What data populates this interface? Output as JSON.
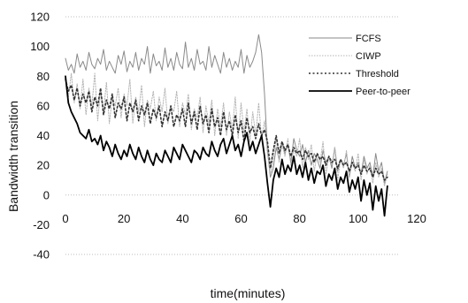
{
  "chart_data": {
    "type": "line",
    "title": "",
    "xlabel": "time(minutes)",
    "ylabel": "Bandwidth transition",
    "xlim": [
      0,
      120
    ],
    "ylim": [
      -40,
      120
    ],
    "xticks": [
      "0",
      "20",
      "40",
      "60",
      "80",
      "100",
      "120"
    ],
    "yticks": [
      "120",
      "100",
      "80",
      "60",
      "40",
      "20",
      "0",
      "-20",
      "-40"
    ],
    "xtick_values": [
      0,
      20,
      40,
      60,
      80,
      100,
      120
    ],
    "ytick_values": [
      120,
      100,
      80,
      60,
      40,
      20,
      0,
      -20,
      -40
    ],
    "grid": true,
    "legend_position": "top-right",
    "series": [
      {
        "name": "FCFS",
        "color": "#8a8a8a",
        "style": "thin-solid",
        "x": [
          0,
          1,
          2,
          3,
          4,
          5,
          6,
          7,
          8,
          9,
          10,
          11,
          12,
          13,
          14,
          15,
          16,
          17,
          18,
          19,
          20,
          21,
          22,
          23,
          24,
          25,
          26,
          27,
          28,
          29,
          30,
          31,
          32,
          33,
          34,
          35,
          36,
          37,
          38,
          39,
          40,
          41,
          42,
          43,
          44,
          45,
          46,
          47,
          48,
          49,
          50,
          51,
          52,
          53,
          54,
          55,
          56,
          57,
          58,
          59,
          60,
          61,
          62,
          63,
          64,
          65,
          66,
          67,
          68,
          69,
          70,
          71,
          72,
          73,
          74,
          75,
          76,
          77,
          78,
          79,
          80,
          81,
          82,
          83,
          84,
          85,
          86,
          87,
          88,
          89,
          90,
          91,
          92,
          93,
          94,
          95,
          96,
          97,
          98,
          99,
          100,
          101,
          102,
          103,
          104,
          105,
          106,
          107,
          108,
          109,
          110
        ],
        "values": [
          92,
          84,
          88,
          82,
          95,
          86,
          90,
          84,
          96,
          88,
          85,
          92,
          88,
          98,
          84,
          90,
          86,
          82,
          94,
          88,
          97,
          83,
          90,
          86,
          96,
          84,
          92,
          88,
          100,
          82,
          95,
          87,
          90,
          84,
          99,
          86,
          92,
          84,
          96,
          88,
          85,
          103,
          86,
          92,
          84,
          98,
          88,
          90,
          84,
          100,
          86,
          94,
          88,
          82,
          96,
          86,
          92,
          84,
          90,
          86,
          98,
          82,
          94,
          86,
          90,
          96,
          108,
          96,
          68,
          30,
          12,
          18,
          32,
          24,
          36,
          28,
          34,
          22,
          38,
          30,
          26,
          34,
          22,
          30,
          20,
          28,
          24,
          18,
          30,
          22,
          26,
          18,
          32,
          16,
          24,
          20,
          28,
          12,
          26,
          18,
          22,
          14,
          26,
          18,
          22,
          12,
          28,
          16,
          22,
          8,
          16
        ]
      },
      {
        "name": "CIWP",
        "color": "#b5b5b5",
        "style": "thin-dotted",
        "x": [
          0,
          1,
          2,
          3,
          4,
          5,
          6,
          7,
          8,
          9,
          10,
          11,
          12,
          13,
          14,
          15,
          16,
          17,
          18,
          19,
          20,
          21,
          22,
          23,
          24,
          25,
          26,
          27,
          28,
          29,
          30,
          31,
          32,
          33,
          34,
          35,
          36,
          37,
          38,
          39,
          40,
          41,
          42,
          43,
          44,
          45,
          46,
          47,
          48,
          49,
          50,
          51,
          52,
          53,
          54,
          55,
          56,
          57,
          58,
          59,
          60,
          61,
          62,
          63,
          64,
          65,
          66,
          67,
          68,
          69,
          70,
          71,
          72,
          73,
          74,
          75,
          76,
          77,
          78,
          79,
          80,
          81,
          82,
          83,
          84,
          85,
          86,
          87,
          88,
          89,
          90,
          91,
          92,
          93,
          94,
          95,
          96,
          97,
          98,
          99,
          100,
          101,
          102,
          103,
          104,
          105,
          106,
          107,
          108,
          109,
          110
        ],
        "values": [
          80,
          66,
          82,
          62,
          75,
          58,
          78,
          54,
          72,
          60,
          82,
          50,
          70,
          56,
          76,
          48,
          66,
          60,
          72,
          52,
          68,
          60,
          78,
          48,
          66,
          56,
          74,
          46,
          64,
          58,
          70,
          50,
          66,
          56,
          72,
          48,
          60,
          56,
          70,
          46,
          62,
          54,
          68,
          44,
          58,
          52,
          66,
          42,
          60,
          48,
          64,
          40,
          58,
          46,
          62,
          40,
          56,
          44,
          66,
          38,
          62,
          42,
          58,
          36,
          56,
          40,
          62,
          38,
          50,
          28,
          14,
          24,
          38,
          22,
          34,
          26,
          38,
          20,
          30,
          26,
          38,
          18,
          32,
          24,
          34,
          16,
          28,
          22,
          36,
          14,
          26,
          20,
          32,
          10,
          24,
          18,
          30,
          12,
          22,
          16,
          28,
          10,
          24,
          14,
          20,
          8,
          22,
          12,
          18,
          6,
          14
        ]
      },
      {
        "name": "Threshold",
        "color": "#333333",
        "style": "dotted",
        "x": [
          0,
          1,
          2,
          3,
          4,
          5,
          6,
          7,
          8,
          9,
          10,
          11,
          12,
          13,
          14,
          15,
          16,
          17,
          18,
          19,
          20,
          21,
          22,
          23,
          24,
          25,
          26,
          27,
          28,
          29,
          30,
          31,
          32,
          33,
          34,
          35,
          36,
          37,
          38,
          39,
          40,
          41,
          42,
          43,
          44,
          45,
          46,
          47,
          48,
          49,
          50,
          51,
          52,
          53,
          54,
          55,
          56,
          57,
          58,
          59,
          60,
          61,
          62,
          63,
          64,
          65,
          66,
          67,
          68,
          69,
          70,
          71,
          72,
          73,
          74,
          75,
          76,
          77,
          78,
          79,
          80,
          81,
          82,
          83,
          84,
          85,
          86,
          87,
          88,
          89,
          90,
          91,
          92,
          93,
          94,
          95,
          96,
          97,
          98,
          99,
          100,
          101,
          102,
          103,
          104,
          105,
          106,
          107,
          108,
          109,
          110
        ],
        "values": [
          78,
          70,
          74,
          64,
          72,
          60,
          68,
          62,
          70,
          56,
          66,
          60,
          72,
          54,
          64,
          58,
          68,
          52,
          62,
          58,
          66,
          50,
          62,
          56,
          64,
          50,
          60,
          54,
          62,
          48,
          58,
          52,
          60,
          46,
          56,
          50,
          60,
          46,
          54,
          50,
          58,
          46,
          62,
          48,
          56,
          44,
          60,
          48,
          54,
          42,
          58,
          46,
          52,
          40,
          56,
          44,
          50,
          40,
          54,
          42,
          50,
          36,
          52,
          42,
          46,
          38,
          48,
          40,
          44,
          36,
          18,
          30,
          40,
          28,
          36,
          30,
          34,
          26,
          32,
          28,
          30,
          24,
          30,
          26,
          28,
          22,
          28,
          24,
          26,
          20,
          26,
          22,
          24,
          18,
          24,
          20,
          22,
          16,
          22,
          18,
          20,
          14,
          20,
          16,
          18,
          12,
          18,
          14,
          16,
          10,
          12
        ]
      },
      {
        "name": "Peer-to-peer",
        "color": "#000000",
        "style": "solid",
        "x": [
          0,
          1,
          2,
          3,
          4,
          5,
          6,
          7,
          8,
          9,
          10,
          11,
          12,
          13,
          14,
          15,
          16,
          17,
          18,
          19,
          20,
          21,
          22,
          23,
          24,
          25,
          26,
          27,
          28,
          29,
          30,
          31,
          32,
          33,
          34,
          35,
          36,
          37,
          38,
          39,
          40,
          41,
          42,
          43,
          44,
          45,
          46,
          47,
          48,
          49,
          50,
          51,
          52,
          53,
          54,
          55,
          56,
          57,
          58,
          59,
          60,
          61,
          62,
          63,
          64,
          65,
          66,
          67,
          68,
          69,
          70,
          71,
          72,
          73,
          74,
          75,
          76,
          77,
          78,
          79,
          80,
          81,
          82,
          83,
          84,
          85,
          86,
          87,
          88,
          89,
          90,
          91,
          92,
          93,
          94,
          95,
          96,
          97,
          98,
          99,
          100,
          101,
          102,
          103,
          104,
          105,
          106,
          107,
          108,
          109,
          110
        ],
        "values": [
          80,
          62,
          56,
          52,
          48,
          42,
          40,
          38,
          44,
          36,
          38,
          34,
          40,
          30,
          36,
          32,
          26,
          34,
          28,
          24,
          30,
          26,
          34,
          28,
          24,
          32,
          26,
          22,
          30,
          24,
          20,
          28,
          24,
          22,
          30,
          26,
          22,
          32,
          28,
          24,
          34,
          30,
          26,
          22,
          30,
          28,
          24,
          32,
          28,
          26,
          36,
          30,
          26,
          34,
          38,
          28,
          34,
          40,
          30,
          34,
          26,
          36,
          42,
          30,
          36,
          28,
          34,
          40,
          26,
          8,
          -8,
          10,
          18,
          12,
          24,
          14,
          20,
          16,
          26,
          14,
          20,
          12,
          22,
          10,
          18,
          8,
          16,
          14,
          20,
          6,
          14,
          10,
          18,
          4,
          12,
          8,
          16,
          2,
          10,
          4,
          12,
          -4,
          10,
          0,
          8,
          -10,
          6,
          -4,
          4,
          -14,
          6
        ]
      }
    ]
  }
}
